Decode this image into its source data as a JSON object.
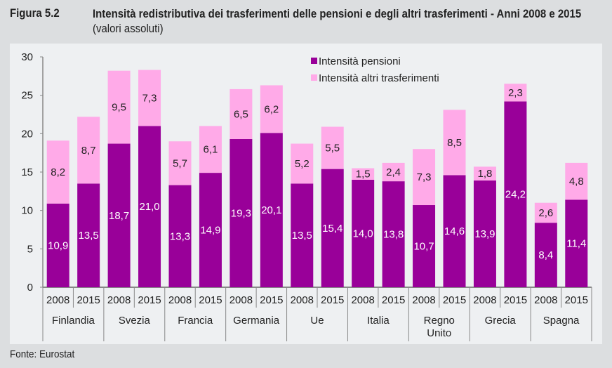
{
  "figure_label": "Figura 5.2",
  "title": "Intensità redistributiva dei trasferimenti delle pensioni e degli altri trasferimenti - Anni 2008 e 2015",
  "title_suffix": "(valori assoluti)",
  "source": "Fonte: Eurostat",
  "chart_data": {
    "type": "bar",
    "stacked": true,
    "groups": [
      "Finlandia",
      "Svezia",
      "Francia",
      "Germania",
      "Ue",
      "Italia",
      "Regno Unito",
      "Grecia",
      "Spagna"
    ],
    "sub_categories": [
      "2008",
      "2015"
    ],
    "series": [
      {
        "name": "Intensità pensioni",
        "color": "#990099",
        "values": [
          10.9,
          13.5,
          18.7,
          21.0,
          13.3,
          14.9,
          19.3,
          20.1,
          13.5,
          15.4,
          14.0,
          13.8,
          10.7,
          14.6,
          13.9,
          24.2,
          8.4,
          11.4
        ],
        "labels": [
          "10,9",
          "13,5",
          "18,7",
          "21,0",
          "13,3",
          "14,9",
          "19,3",
          "20,1",
          "13,5",
          "15,4",
          "14,0",
          "13,8",
          "10,7",
          "14,6",
          "13,9",
          "24,2",
          "8,4",
          "11,4"
        ]
      },
      {
        "name": "Intensità altri trasferimenti",
        "color": "#ffaae8",
        "values": [
          8.2,
          8.7,
          9.5,
          7.3,
          5.7,
          6.1,
          6.5,
          6.2,
          5.2,
          5.5,
          1.5,
          2.4,
          7.3,
          8.5,
          1.8,
          2.3,
          2.6,
          4.8
        ],
        "labels": [
          "8,2",
          "8,7",
          "9,5",
          "7,3",
          "5,7",
          "6,1",
          "6,5",
          "6,2",
          "5,2",
          "5,5",
          "1,5",
          "2,4",
          "7,3",
          "8,5",
          "1,8",
          "2,3",
          "2,6",
          "4,8"
        ]
      }
    ],
    "ylim": [
      0,
      30
    ],
    "yticks": [
      0,
      5,
      10,
      15,
      20,
      25,
      30
    ],
    "grid": false,
    "legend_placement": "top-center"
  }
}
